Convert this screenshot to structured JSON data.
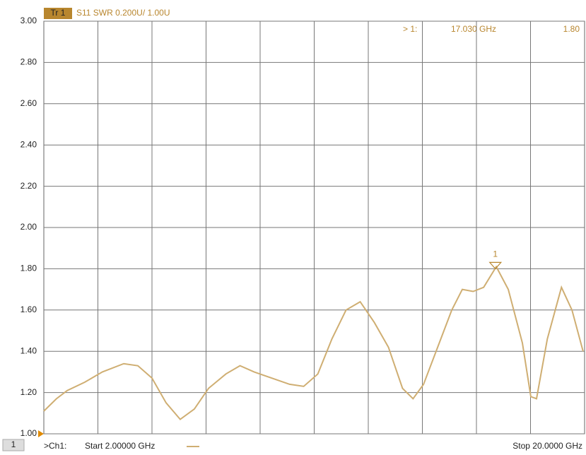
{
  "chart_data": {
    "type": "line",
    "trace_tag": "Tr 1",
    "title": "S11 SWR 0.200U/ 1.00U",
    "xlim": [
      2,
      20
    ],
    "ylim": [
      1.0,
      3.0
    ],
    "yticks": [
      {
        "value": 1.0,
        "label": "1.00"
      },
      {
        "value": 1.2,
        "label": "1.20"
      },
      {
        "value": 1.4,
        "label": "1.40"
      },
      {
        "value": 1.6,
        "label": "1.60"
      },
      {
        "value": 1.8,
        "label": "1.80"
      },
      {
        "value": 2.0,
        "label": "2.00"
      },
      {
        "value": 2.2,
        "label": "2.20"
      },
      {
        "value": 2.4,
        "label": "2.40"
      },
      {
        "value": 2.6,
        "label": "2.60"
      },
      {
        "value": 2.8,
        "label": "2.80"
      },
      {
        "value": 3.0,
        "label": "3.00"
      }
    ],
    "grid": true,
    "x": [
      2.0,
      2.42,
      2.78,
      3.36,
      3.95,
      4.66,
      5.13,
      5.6,
      6.07,
      6.54,
      7.01,
      7.48,
      8.06,
      8.53,
      9.0,
      9.59,
      10.18,
      10.65,
      11.12,
      11.59,
      12.06,
      12.53,
      13.0,
      13.47,
      13.94,
      14.29,
      14.64,
      15.11,
      15.58,
      15.93,
      16.29,
      16.64,
      17.06,
      17.46,
      17.93,
      18.21,
      18.4,
      18.76,
      19.23,
      19.58,
      19.95
    ],
    "series": [
      {
        "name": "S11 SWR",
        "color": "#cfae72",
        "values": [
          1.11,
          1.17,
          1.21,
          1.25,
          1.3,
          1.34,
          1.33,
          1.27,
          1.15,
          1.07,
          1.12,
          1.22,
          1.29,
          1.33,
          1.3,
          1.27,
          1.24,
          1.23,
          1.29,
          1.46,
          1.6,
          1.64,
          1.54,
          1.42,
          1.22,
          1.17,
          1.24,
          1.42,
          1.6,
          1.7,
          1.69,
          1.71,
          1.81,
          1.7,
          1.44,
          1.18,
          1.17,
          1.46,
          1.71,
          1.6,
          1.4
        ]
      }
    ],
    "marker": {
      "label": "1",
      "x": 17.03,
      "y": 1.8,
      "readout": "> 1:",
      "x_label": "17.030 GHz",
      "y_label": "1.80"
    },
    "footer": {
      "channel": "1",
      "channel_label": ">Ch1:",
      "start": "Start  2.00000 GHz",
      "stop": "Stop  20.0000 GHz"
    }
  }
}
